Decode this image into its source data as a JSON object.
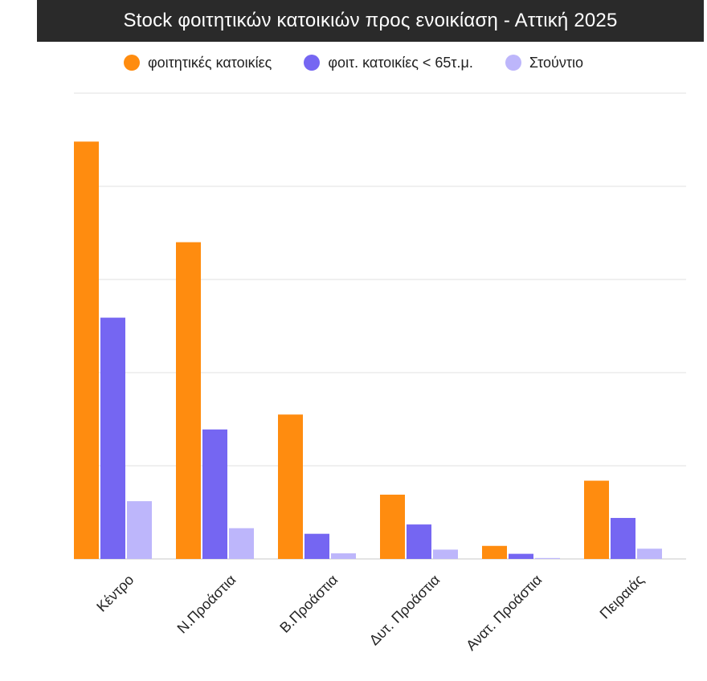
{
  "chart_data": {
    "type": "bar",
    "title": "Stock  φοιτητικών κατοικιών προς ενοικίαση - Αττική 2025",
    "categories": [
      "Κέντρο",
      "Ν.Προάστια",
      "Β.Προάστια",
      "Δυτ. Προάστια",
      "Ανατ. Προάστια",
      "Πειραιάς"
    ],
    "series": [
      {
        "name": "φοιτητικές κατοικίες",
        "color": "#ff8c0f",
        "values": [
          4480,
          3400,
          1550,
          690,
          140,
          840
        ]
      },
      {
        "name": "φοιτ. κατοικίες < 65τ.μ.",
        "color": "#7566f2",
        "values": [
          2590,
          1390,
          270,
          370,
          55,
          440
        ]
      },
      {
        "name": "Στούντιο",
        "color": "#bdb6fb",
        "values": [
          620,
          330,
          60,
          100,
          10,
          110
        ]
      }
    ],
    "ylim": [
      0,
      5000
    ],
    "ytick_step": 1000,
    "y_tick_labels_shown": false,
    "grid": true,
    "legend_position": "top-center",
    "xlabel": "",
    "ylabel": ""
  }
}
